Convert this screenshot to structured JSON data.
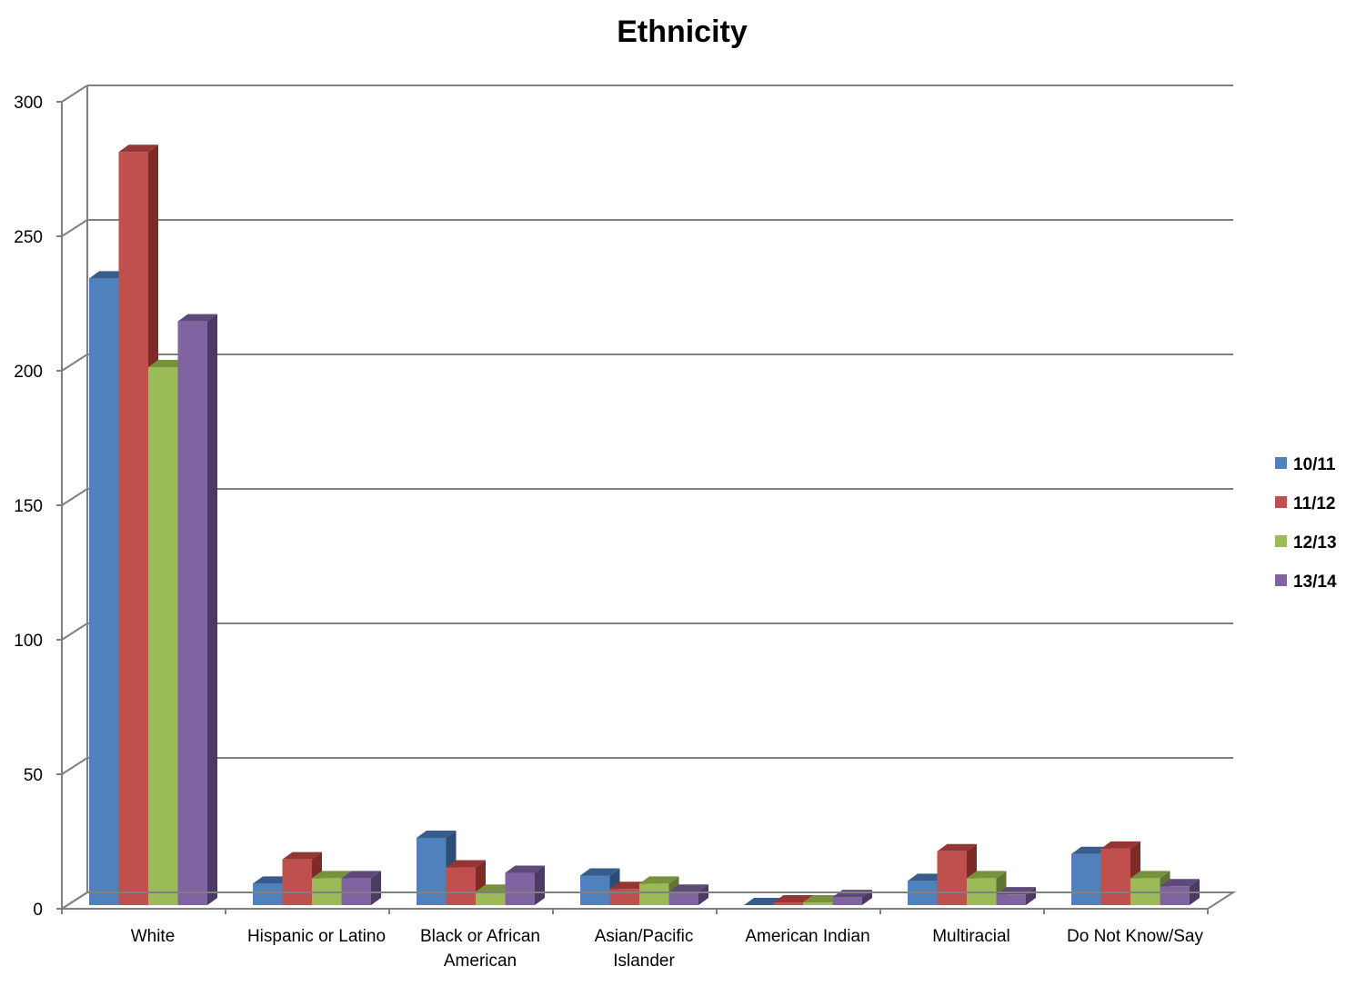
{
  "chart_data": {
    "type": "bar",
    "title": "Ethnicity",
    "xlabel": "",
    "ylabel": "",
    "ylim": [
      0,
      300
    ],
    "yticks": [
      0,
      50,
      100,
      150,
      200,
      250,
      300
    ],
    "grid": true,
    "legend_position": "right",
    "categories": [
      [
        "White"
      ],
      [
        "Hispanic or Latino"
      ],
      [
        "Black or African",
        "American"
      ],
      [
        "Asian/Pacific",
        "Islander"
      ],
      [
        "American Indian"
      ],
      [
        "Multiracial"
      ],
      [
        "Do Not Know/Say"
      ]
    ],
    "series": [
      {
        "name": "10/11",
        "color": "#4F81BD",
        "top_color": "#385D8A",
        "side_color": "#2C4D75",
        "values": [
          233,
          8,
          25,
          11,
          0,
          9,
          19
        ]
      },
      {
        "name": "11/12",
        "color": "#C0504D",
        "top_color": "#943634",
        "side_color": "#7F2A27",
        "values": [
          280,
          17,
          14,
          6,
          1,
          20,
          21
        ]
      },
      {
        "name": "12/13",
        "color": "#9BBB59",
        "top_color": "#76923C",
        "side_color": "#5F7530",
        "values": [
          200,
          10,
          5,
          8,
          1,
          10,
          10
        ]
      },
      {
        "name": "13/14",
        "color": "#8064A2",
        "top_color": "#5F497A",
        "side_color": "#4B3A61",
        "values": [
          217,
          10,
          12,
          5,
          3,
          4,
          7
        ]
      }
    ]
  }
}
